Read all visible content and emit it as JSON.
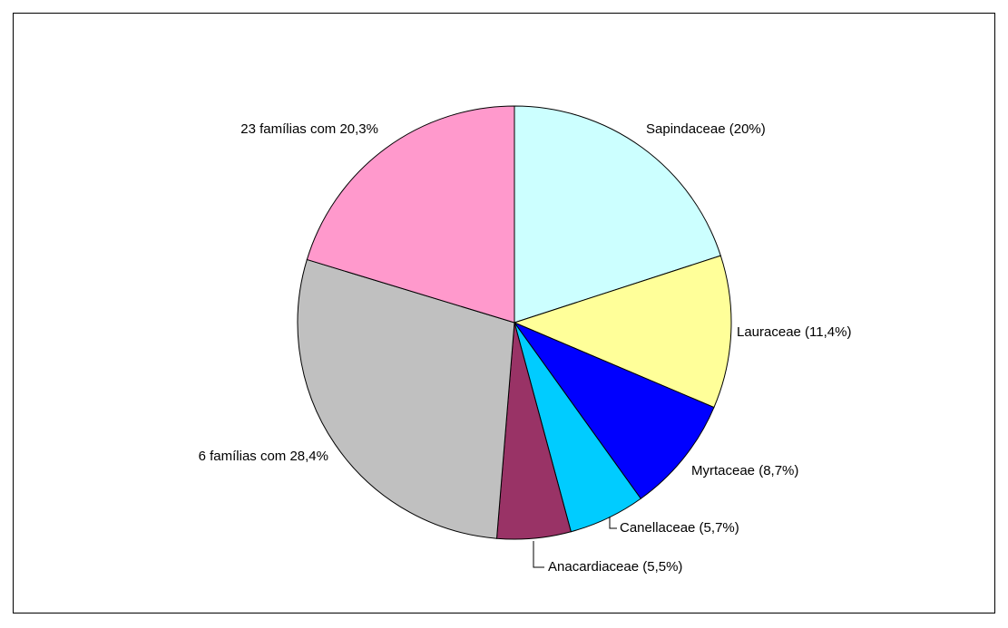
{
  "chart_data": {
    "type": "pie",
    "categories": [
      "Sapindaceae (20%)",
      "Lauraceae (11,4%)",
      "Myrtaceae (8,7%)",
      "Canellaceae (5,7%)",
      "Anacardiaceae (5,5%)",
      "6 famílias com 28,4%",
      "23 famílias com 20,3%"
    ],
    "values": [
      20,
      11.4,
      8.7,
      5.7,
      5.5,
      28.4,
      20.3
    ],
    "colors": [
      "#ccffff",
      "#ffff99",
      "#0000ff",
      "#00ccff",
      "#993366",
      "#c0c0c0",
      "#ff99cc"
    ]
  }
}
